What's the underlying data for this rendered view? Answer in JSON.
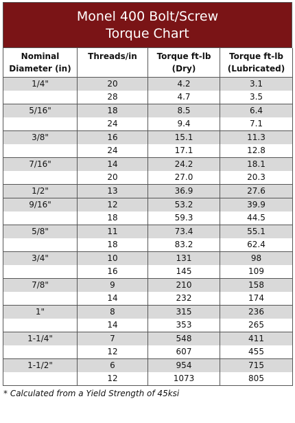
{
  "title": {
    "line1": "Monel 400 Bolt/Screw",
    "line2": "Torque Chart"
  },
  "headers": {
    "col1": [
      "Nominal",
      "Diameter (in)"
    ],
    "col2": [
      "Threads/in"
    ],
    "col3": [
      "Torque ft-lb",
      "(Dry)"
    ],
    "col4": [
      "Torque ft-lb",
      "(Lubricated)"
    ]
  },
  "rows": [
    {
      "diameter": "1/4\"",
      "threads": "20",
      "dry": "4.2",
      "lub": "3.1"
    },
    {
      "diameter": "",
      "threads": "28",
      "dry": "4.7",
      "lub": "3.5"
    },
    {
      "diameter": "5/16\"",
      "threads": "18",
      "dry": "8.5",
      "lub": "6.4"
    },
    {
      "diameter": "",
      "threads": "24",
      "dry": "9.4",
      "lub": "7.1"
    },
    {
      "diameter": "3/8\"",
      "threads": "16",
      "dry": "15.1",
      "lub": "11.3"
    },
    {
      "diameter": "",
      "threads": "24",
      "dry": "17.1",
      "lub": "12.8"
    },
    {
      "diameter": "7/16\"",
      "threads": "14",
      "dry": "24.2",
      "lub": "18.1"
    },
    {
      "diameter": "",
      "threads": "20",
      "dry": "27.0",
      "lub": "20.3"
    },
    {
      "diameter": "1/2\"",
      "threads": "13",
      "dry": "36.9",
      "lub": "27.6"
    },
    {
      "diameter": "9/16\"",
      "threads": "12",
      "dry": "53.2",
      "lub": "39.9"
    },
    {
      "diameter": "",
      "threads": "18",
      "dry": "59.3",
      "lub": "44.5"
    },
    {
      "diameter": "5/8\"",
      "threads": "11",
      "dry": "73.4",
      "lub": "55.1"
    },
    {
      "diameter": "",
      "threads": "18",
      "dry": "83.2",
      "lub": "62.4"
    },
    {
      "diameter": "3/4\"",
      "threads": "10",
      "dry": "131",
      "lub": "98"
    },
    {
      "diameter": "",
      "threads": "16",
      "dry": "145",
      "lub": "109"
    },
    {
      "diameter": "7/8\"",
      "threads": "9",
      "dry": "210",
      "lub": "158"
    },
    {
      "diameter": "",
      "threads": "14",
      "dry": "232",
      "lub": "174"
    },
    {
      "diameter": "1\"",
      "threads": "8",
      "dry": "315",
      "lub": "236"
    },
    {
      "diameter": "",
      "threads": "14",
      "dry": "353",
      "lub": "265"
    },
    {
      "diameter": "1-1/4\"",
      "threads": "7",
      "dry": "548",
      "lub": "411"
    },
    {
      "diameter": "",
      "threads": "12",
      "dry": "607",
      "lub": "455"
    },
    {
      "diameter": "1-1/2\"",
      "threads": "6",
      "dry": "954",
      "lub": "715"
    },
    {
      "diameter": "",
      "threads": "12",
      "dry": "1073",
      "lub": "805"
    }
  ],
  "footnote": "* Calculated from a Yield Strength of 45ksi"
}
